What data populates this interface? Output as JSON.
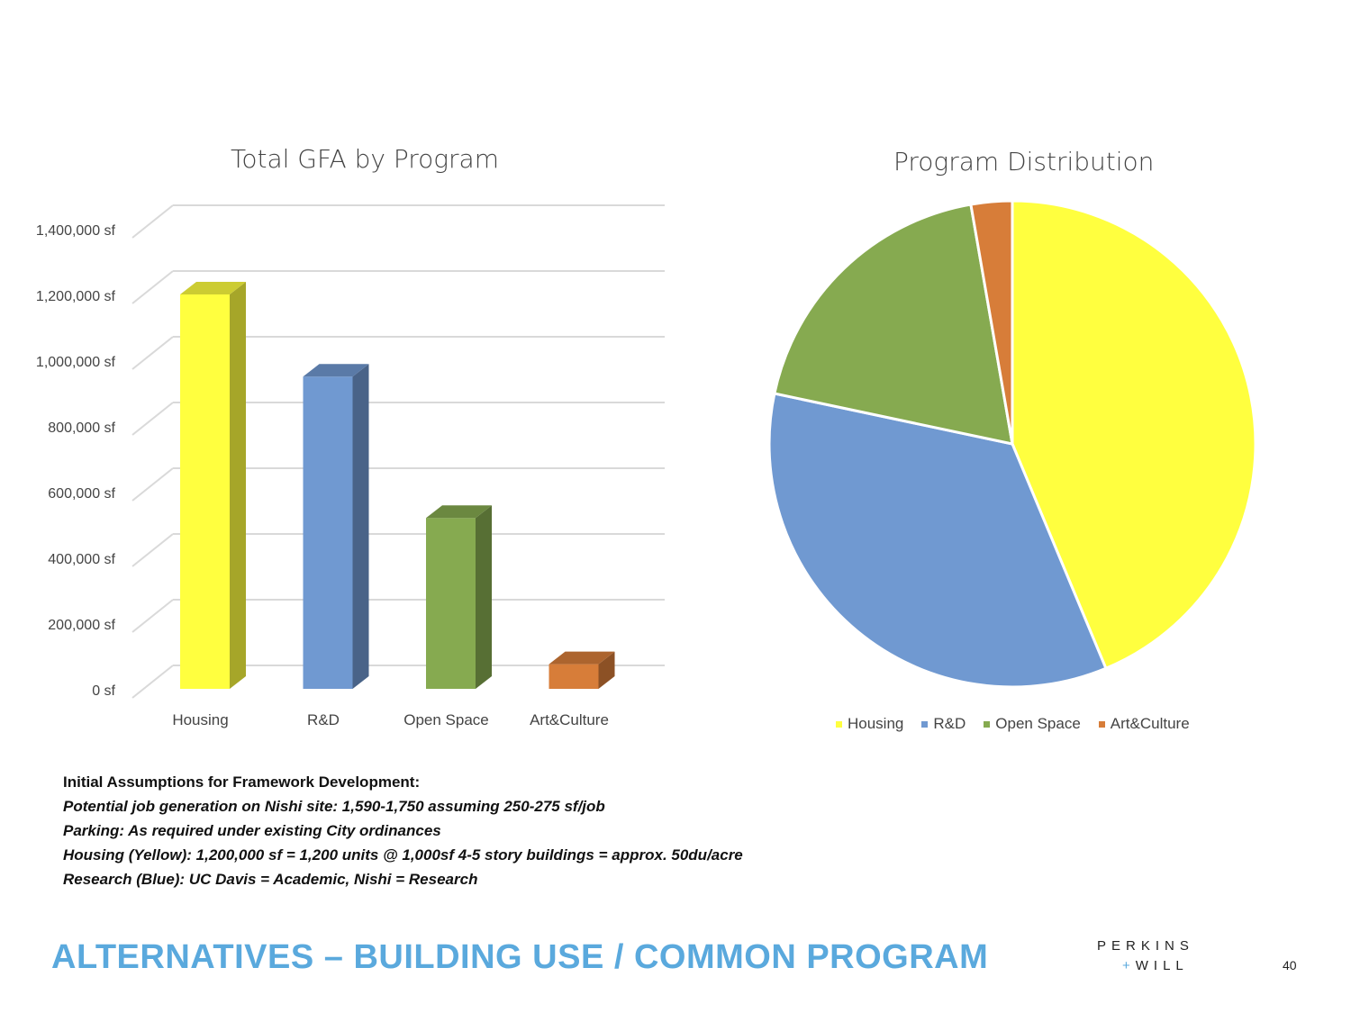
{
  "chart_data": [
    {
      "type": "bar",
      "title": "Total GFA by Program",
      "categories": [
        "Housing",
        "R&D",
        "Open Space",
        "Art&Culture"
      ],
      "values": [
        1200000,
        950000,
        520000,
        75000
      ],
      "ylim": [
        0,
        1400000
      ],
      "yticks": [
        "0 sf",
        "200,000 sf",
        "400,000 sf",
        "600,000 sf",
        "800,000 sf",
        "1,000,000 sf",
        "1,200,000 sf",
        "1,400,000 sf"
      ],
      "grid": true,
      "colors": [
        "#ffff3f",
        "#7099d1",
        "#86aa50",
        "#d77d39"
      ]
    },
    {
      "type": "pie",
      "title": "Program Distribution",
      "categories": [
        "Housing",
        "R&D",
        "Open Space",
        "Art&Culture"
      ],
      "values": [
        1200000,
        950000,
        520000,
        75000
      ],
      "legend": "bottom",
      "colors": [
        "#ffff3f",
        "#7099d1",
        "#86aa50",
        "#d77d39"
      ]
    }
  ],
  "notes": {
    "heading": "Initial Assumptions for Framework Development:",
    "lines": [
      "Potential job generation on Nishi site: 1,590-1,750 assuming 250-275 sf/job",
      "Parking: As required under existing City ordinances",
      "Housing (Yellow): 1,200,000 sf = 1,200 units @ 1,000sf 4-5 story buildings = approx. 50du/acre",
      "Research (Blue): UC Davis = Academic, Nishi = Research"
    ]
  },
  "footer": {
    "title": "ALTERNATIVES – BUILDING USE / COMMON PROGRAM",
    "logo_line1": "PERKINS",
    "logo_plus": "+",
    "logo_line2": "WILL",
    "page": "40"
  }
}
